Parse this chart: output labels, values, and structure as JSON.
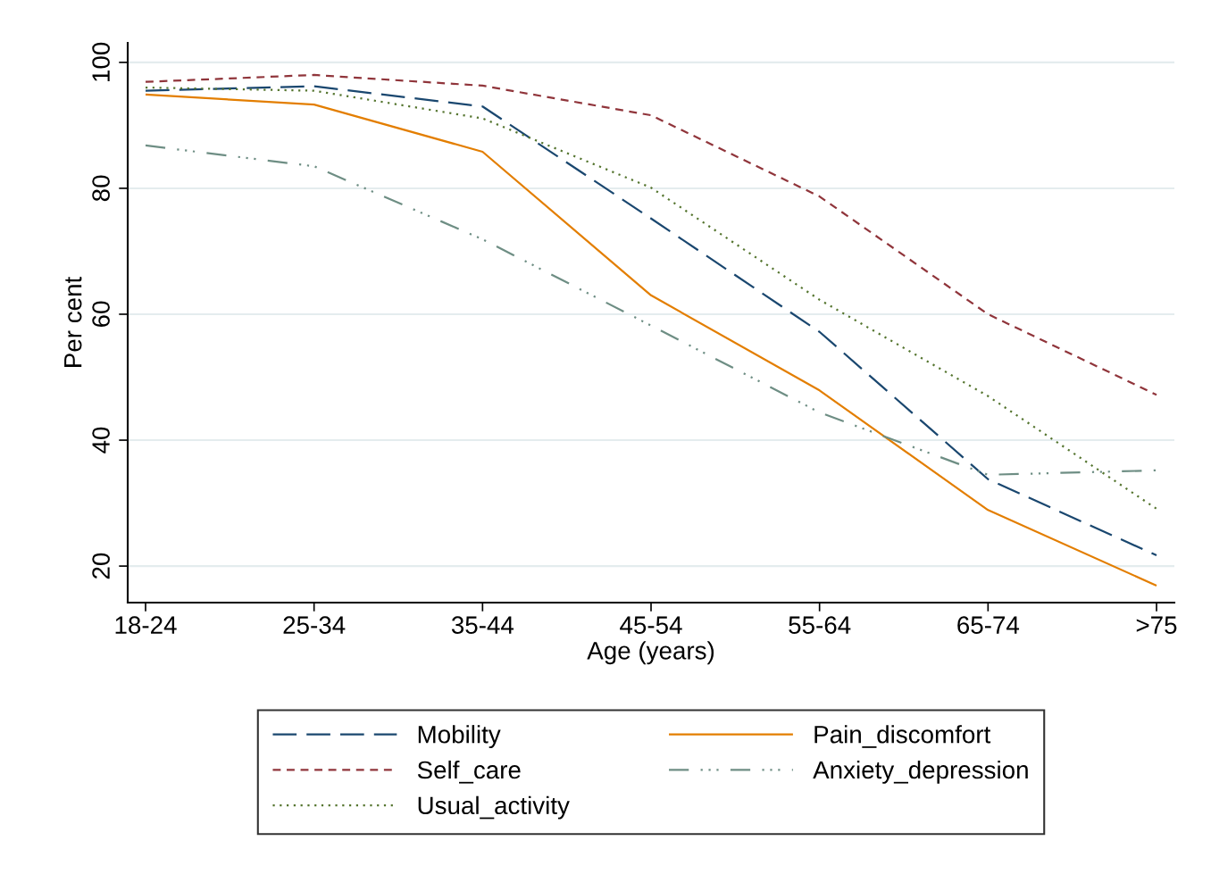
{
  "chart_data": {
    "type": "line",
    "xlabel": "Age (years)",
    "ylabel": "Per cent",
    "categories": [
      "18-24",
      "25-34",
      "35-44",
      "45-54",
      "55-64",
      "65-74",
      ">75"
    ],
    "series": [
      {
        "name": "Mobility",
        "color": "#1a476f",
        "line_style": "longdash",
        "values": [
          95.5,
          96.2,
          93.0,
          75.2,
          57.2,
          33.8,
          21.7
        ]
      },
      {
        "name": "Self_care",
        "color": "#90353b",
        "line_style": "dashed",
        "values": [
          96.9,
          98.0,
          96.3,
          91.6,
          78.7,
          60.0,
          47.2
        ]
      },
      {
        "name": "Usual_activity",
        "color": "#55752f",
        "line_style": "dotted",
        "values": [
          96.0,
          95.5,
          91.1,
          80.1,
          62.3,
          47.0,
          29.1
        ]
      },
      {
        "name": "Pain_discomfort",
        "color": "#e37e00",
        "line_style": "solid",
        "values": [
          94.9,
          93.3,
          85.8,
          63.0,
          47.9,
          28.9,
          16.9
        ]
      },
      {
        "name": "Anxiety_depression",
        "color": "#6e8e84",
        "line_style": "dashdotdot",
        "values": [
          86.8,
          83.5,
          71.9,
          58.2,
          44.4,
          34.5,
          35.2
        ]
      }
    ],
    "ylim": [
      14.2,
      103.1
    ],
    "yticks": [
      20,
      40,
      60,
      80,
      100
    ],
    "grid": "y",
    "legend": "bottom",
    "marker": "none"
  }
}
